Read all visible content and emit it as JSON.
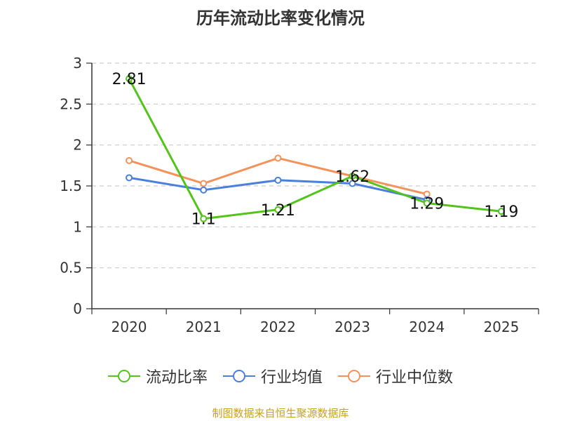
{
  "title": "历年流动比率变化情况",
  "source_note": "制图数据来自恒生聚源数据库",
  "chart_data": {
    "type": "line",
    "title": "历年流动比率变化情况",
    "categories": [
      "2020",
      "2021",
      "2022",
      "2023",
      "2024",
      "2025"
    ],
    "ylim": [
      0,
      3
    ],
    "yticks": [
      0,
      0.5,
      1,
      1.5,
      2,
      2.5,
      3
    ],
    "ytick_labels": [
      "0",
      "0.5",
      "1",
      "1.5",
      "2",
      "2.5",
      "3"
    ],
    "grid": true,
    "legend_position": "bottom",
    "series": [
      {
        "name": "流动比率",
        "color": "#52c41a",
        "values": [
          2.81,
          1.1,
          1.21,
          1.62,
          1.29,
          1.19
        ],
        "labels": [
          "2.81",
          "1.1",
          "1.21",
          "1.62",
          "1.29",
          "1.19"
        ]
      },
      {
        "name": "行业均值",
        "color": "#4a7fdc",
        "values": [
          1.6,
          1.45,
          1.57,
          1.53,
          1.33,
          null
        ]
      },
      {
        "name": "行业中位数",
        "color": "#f5915a",
        "values": [
          1.81,
          1.53,
          1.84,
          1.62,
          1.4,
          null
        ]
      }
    ]
  }
}
